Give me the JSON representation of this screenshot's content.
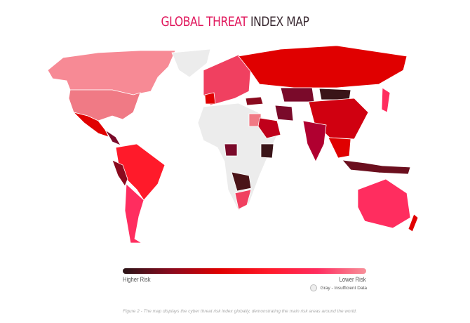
{
  "title": {
    "part1": "GLOBAL THREAT",
    "part2": "INDEX MAP"
  },
  "legend": {
    "higher_label": "Higher Risk",
    "lower_label": "Lower Risk",
    "gradient_colors": [
      "#2a1418",
      "#8a0a1e",
      "#e00000",
      "#ff1a2a",
      "#ff2d5f",
      "#f7909a"
    ],
    "insufficient_label": "Gray - Insufficient Data",
    "insufficient_color": "#ececec"
  },
  "caption": "Figure 2 - The map displays the cyber threat risk index globally, demonstrating the main risk areas around the world."
}
